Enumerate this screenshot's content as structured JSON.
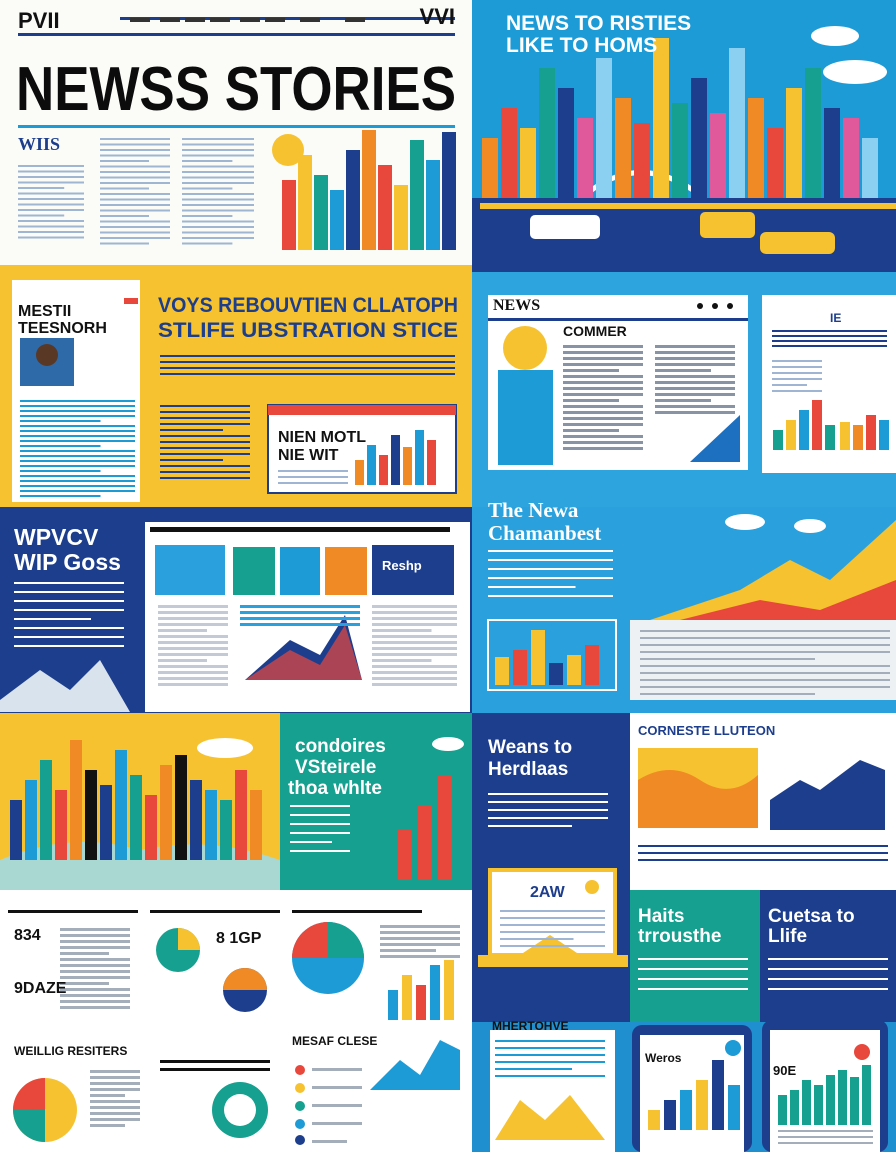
{
  "masthead": {
    "left": "PVII",
    "right": "VVI",
    "title": "NEWSS STORIES",
    "byline": "WIIS"
  },
  "city_panel": {
    "heading": [
      "NEWS TO RISTIES",
      "LIKE TO HOMS"
    ]
  },
  "feature": {
    "kicker": [
      "MESTII",
      "TEESNORH"
    ],
    "headline": [
      "VOYS REBOUVTIEN CLLATOPH",
      "STLIFE UBSTRATION STICE"
    ],
    "card": [
      "NIEN MOTL",
      "NIE WIT"
    ]
  },
  "browser": {
    "logo": "NEWS",
    "section": "COMMER",
    "tag": "IE"
  },
  "web": {
    "heading": [
      "WPVCV",
      "WIP Goss"
    ],
    "tag": "Reshp"
  },
  "chart_story": {
    "heading": [
      "The Newa",
      "Chamanbest"
    ]
  },
  "skyline": {
    "heading": [
      "condoires",
      "VSteirele",
      "thoa whlte"
    ]
  },
  "ways": {
    "heading": [
      "Weans to",
      "Herdlaas"
    ]
  },
  "corner": {
    "heading": "CORNESTE LLUTEON",
    "badge": "2AW"
  },
  "haits": {
    "heading": [
      "Haits",
      "trrousthe"
    ]
  },
  "guide": {
    "heading": [
      "Cuetsa to",
      "Llife"
    ]
  },
  "infographics": {
    "labels": [
      "834",
      "9DAZE",
      "8 1GP",
      "WEILLIG RESITERS",
      "MESAF CLESE"
    ]
  },
  "phones": {
    "labels": [
      "MHERTOHVE",
      "Weros",
      "90E"
    ]
  }
}
